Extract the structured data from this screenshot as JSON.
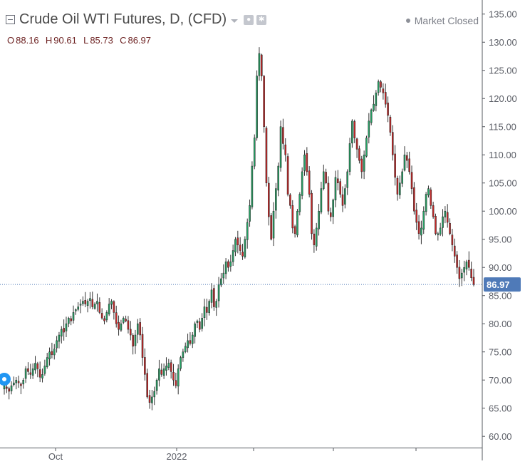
{
  "header": {
    "title": "Crude Oil WTI Futures, D, (CFD)",
    "status": "Market Closed"
  },
  "ohlc": {
    "open_label": "O",
    "open": "88.16",
    "high_label": "H",
    "high": "90.61",
    "low_label": "L",
    "low": "85.73",
    "close_label": "C",
    "close": "86.97"
  },
  "colors": {
    "up": "#26a064",
    "down": "#c62828",
    "price_line": "#4f7ab8",
    "price_tag": "#4f7ab8",
    "axis": "#55585f"
  },
  "chart_data": {
    "type": "candlestick",
    "ylim": [
      58,
      137.5
    ],
    "y_ticks": [
      "135.00",
      "130.00",
      "125.00",
      "120.00",
      "115.00",
      "110.00",
      "105.00",
      "100.00",
      "95.00",
      "90.00",
      "85.00",
      "80.00",
      "75.00",
      "70.00",
      "65.00",
      "60.00"
    ],
    "x_ticks": [
      "Oct",
      "2022"
    ],
    "last_price": 86.97,
    "last_price_label": "86.97",
    "closes": [
      69,
      68.5,
      68,
      69,
      69.5,
      70,
      69.5,
      69,
      70,
      72,
      71.5,
      71,
      72,
      73,
      72,
      70.5,
      71,
      72.5,
      74,
      75,
      74.5,
      75.5,
      77,
      78,
      79,
      78.5,
      80,
      81,
      80.5,
      82,
      82.5,
      83,
      83.5,
      84,
      83.5,
      84,
      84.5,
      83,
      83.5,
      84,
      82,
      81,
      80.5,
      82,
      83.5,
      84,
      82,
      80,
      79,
      80,
      81,
      80.5,
      79,
      78,
      76,
      78,
      80,
      78,
      74,
      71,
      67,
      66,
      67,
      68,
      70,
      72,
      71,
      72,
      72.5,
      73,
      71.5,
      70,
      69,
      72,
      74,
      75,
      76,
      77,
      76.5,
      78,
      80,
      80.5,
      79,
      81,
      83,
      82,
      84,
      86,
      83,
      84,
      87,
      88,
      89,
      91,
      90,
      91,
      93,
      95,
      94,
      93,
      92,
      95,
      98,
      101,
      108,
      113,
      124,
      128,
      124,
      115,
      105,
      99,
      95,
      100,
      104,
      108,
      115,
      112,
      110,
      103,
      101,
      97,
      96,
      100,
      103,
      107,
      110,
      107,
      103,
      96,
      94,
      97,
      100,
      104,
      107,
      105,
      100,
      99,
      102,
      106,
      105,
      103,
      101,
      104,
      107,
      112,
      116,
      113,
      111,
      109,
      107,
      110,
      113,
      116,
      118,
      119,
      121,
      123,
      122,
      121,
      119,
      117,
      114,
      110,
      106,
      103,
      105,
      107,
      110,
      109,
      107,
      104,
      100,
      98,
      96,
      97,
      100,
      103,
      104,
      101,
      99,
      96,
      96,
      97,
      99,
      100,
      98,
      96,
      94,
      92,
      90,
      88,
      89,
      90,
      91,
      90,
      88.16,
      86.97
    ]
  }
}
